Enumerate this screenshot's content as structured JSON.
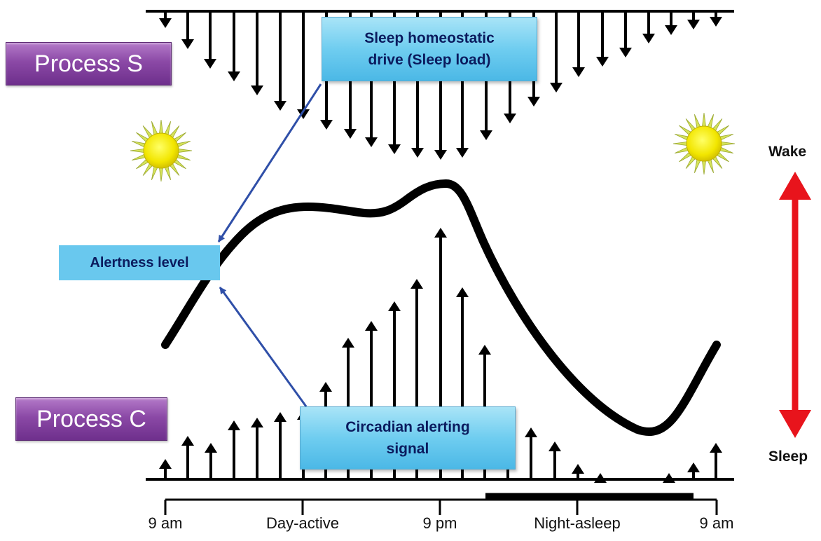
{
  "process_s": {
    "label": "Process S"
  },
  "process_c": {
    "label": "Process C"
  },
  "sleep_drive": {
    "line1": "Sleep homeostatic",
    "line2": "drive (Sleep load)"
  },
  "alertness": {
    "label": "Alertness level"
  },
  "circadian": {
    "line1": "Circadian alerting",
    "line2": "signal"
  },
  "axis": {
    "ticks": [
      "9 am",
      "Day-active",
      "9 pm",
      "Night-asleep",
      "9 am"
    ]
  },
  "scale": {
    "top": "Wake",
    "bottom": "Sleep"
  },
  "colors": {
    "process_box": "#8b49a6",
    "info_box": "#6fcdf0",
    "connector": "#2f4fa8",
    "scale_arrow": "#e8141c",
    "sun": "#f2e600",
    "sun_rays": "#c8d84a"
  },
  "icons": [
    "sun-icon",
    "down-arrow-icon",
    "up-arrow-icon"
  ]
}
